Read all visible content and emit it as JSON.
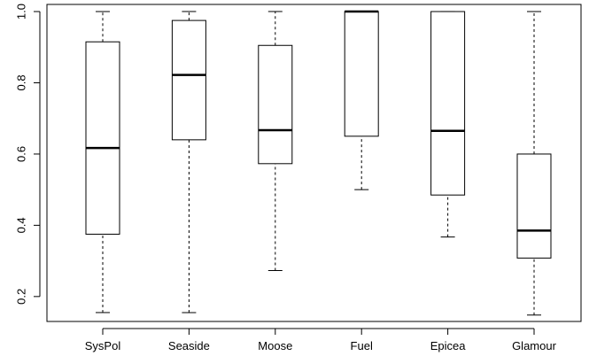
{
  "chart_data": {
    "type": "boxplot",
    "title": "",
    "xlabel": "",
    "ylabel": "",
    "ylim": [
      0.13,
      1.02
    ],
    "yticks": [
      "0.2",
      "0.4",
      "0.6",
      "0.8",
      "1.0"
    ],
    "ytick_values": [
      0.2,
      0.4,
      0.6,
      0.8,
      1.0
    ],
    "categories": [
      "SysPol",
      "Seaside",
      "Moose",
      "Fuel",
      "Epicea",
      "Glamour"
    ],
    "boxes": [
      {
        "name": "SysPol",
        "min": 0.155,
        "q1": 0.375,
        "median": 0.617,
        "q3": 0.915,
        "max": 1.0
      },
      {
        "name": "Seaside",
        "min": 0.155,
        "q1": 0.64,
        "median": 0.822,
        "q3": 0.975,
        "max": 1.0
      },
      {
        "name": "Moose",
        "min": 0.273,
        "q1": 0.573,
        "median": 0.667,
        "q3": 0.905,
        "max": 1.0
      },
      {
        "name": "Fuel",
        "min": 0.5,
        "q1": 0.65,
        "median": 1.0,
        "q3": 1.0,
        "max": 1.0
      },
      {
        "name": "Epicea",
        "min": 0.367,
        "q1": 0.485,
        "median": 0.665,
        "q3": 1.0,
        "max": 1.0
      },
      {
        "name": "Glamour",
        "min": 0.148,
        "q1": 0.308,
        "median": 0.385,
        "q3": 0.6,
        "max": 1.0
      }
    ],
    "grid": false,
    "legend": "none"
  }
}
